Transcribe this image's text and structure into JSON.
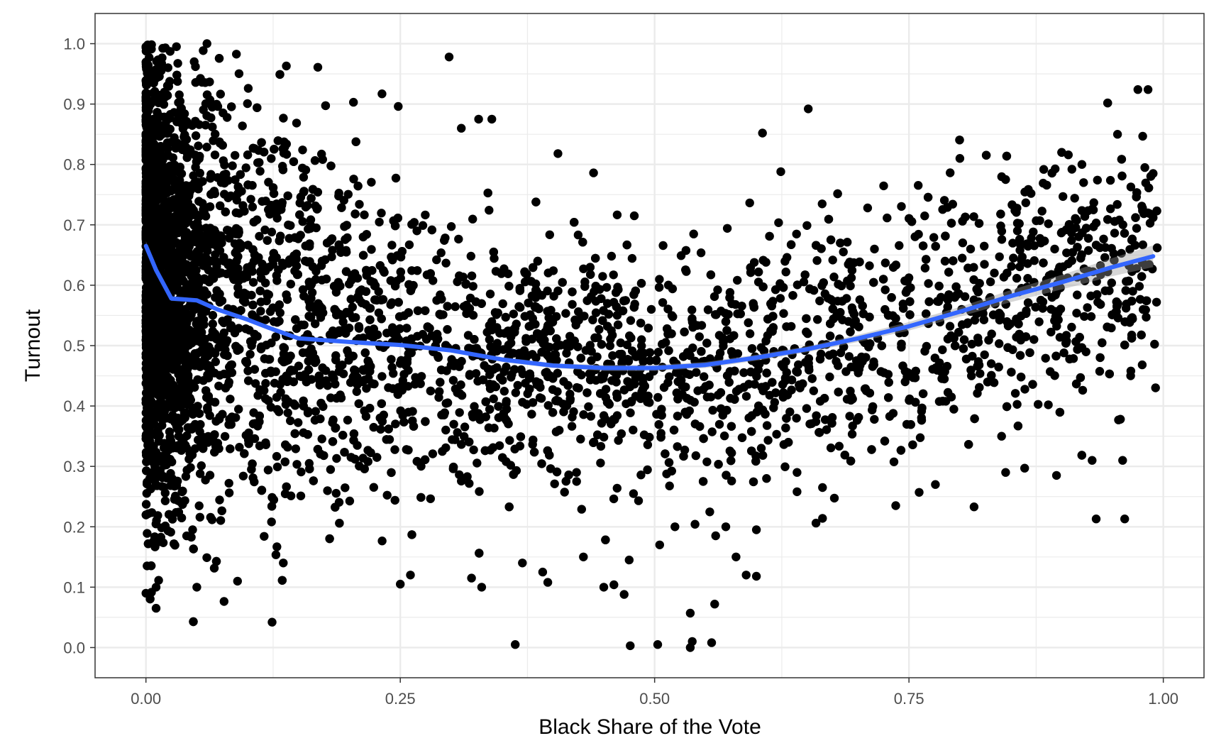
{
  "chart_data": {
    "type": "scatter",
    "title": "",
    "xlabel": "Black Share of the Vote",
    "ylabel": "Turnout",
    "xlim": [
      -0.05,
      1.04
    ],
    "ylim": [
      -0.05,
      1.05
    ],
    "x_ticks": [
      0.0,
      0.25,
      0.5,
      0.75,
      1.0
    ],
    "x_tick_labels": [
      "0.00",
      "0.25",
      "0.50",
      "0.75",
      "1.00"
    ],
    "y_ticks": [
      0.0,
      0.1,
      0.2,
      0.3,
      0.4,
      0.5,
      0.6,
      0.7,
      0.8,
      0.9,
      1.0
    ],
    "y_tick_labels": [
      "0.0",
      "0.1",
      "0.2",
      "0.3",
      "0.4",
      "0.5",
      "0.6",
      "0.7",
      "0.8",
      "0.9",
      "1.0"
    ],
    "grid": true,
    "legend": "none",
    "colors": {
      "points": "#000000",
      "smooth": "#3366FF",
      "ribbon": "#999999",
      "grid": "#ebebeb",
      "panel_border": "#333333"
    },
    "outliers": [
      {
        "x": 0.0,
        "y": 0.09
      },
      {
        "x": 0.01,
        "y": 0.065
      },
      {
        "x": 0.01,
        "y": 0.1
      },
      {
        "x": 0.05,
        "y": 0.1
      },
      {
        "x": 0.09,
        "y": 0.11
      },
      {
        "x": 0.124,
        "y": 0.042
      },
      {
        "x": 0.135,
        "y": 0.14
      },
      {
        "x": 0.298,
        "y": 0.978
      },
      {
        "x": 0.363,
        "y": 0.005
      },
      {
        "x": 0.476,
        "y": 0.003
      },
      {
        "x": 0.503,
        "y": 0.005
      },
      {
        "x": 0.535,
        "y": 0.0
      },
      {
        "x": 0.537,
        "y": 0.01
      },
      {
        "x": 0.556,
        "y": 0.008
      },
      {
        "x": 0.535,
        "y": 0.057
      },
      {
        "x": 0.559,
        "y": 0.072
      },
      {
        "x": 0.47,
        "y": 0.088
      },
      {
        "x": 0.46,
        "y": 0.104
      },
      {
        "x": 0.606,
        "y": 0.852
      },
      {
        "x": 0.651,
        "y": 0.892
      },
      {
        "x": 0.59,
        "y": 0.12
      },
      {
        "x": 0.6,
        "y": 0.118
      },
      {
        "x": 0.934,
        "y": 0.213
      },
      {
        "x": 0.962,
        "y": 0.213
      },
      {
        "x": 0.814,
        "y": 0.233
      },
      {
        "x": 0.737,
        "y": 0.235
      },
      {
        "x": 0.665,
        "y": 0.214
      },
      {
        "x": 0.975,
        "y": 0.924
      },
      {
        "x": 0.985,
        "y": 0.924
      },
      {
        "x": 0.96,
        "y": 0.31
      },
      {
        "x": 0.956,
        "y": 0.377
      },
      {
        "x": 0.97,
        "y": 0.59
      },
      {
        "x": 0.99,
        "y": 0.712
      },
      {
        "x": 0.99,
        "y": 0.785
      },
      {
        "x": 0.31,
        "y": 0.86
      },
      {
        "x": 0.327,
        "y": 0.875
      },
      {
        "x": 0.34,
        "y": 0.875
      },
      {
        "x": 0.204,
        "y": 0.903
      },
      {
        "x": 0.232,
        "y": 0.917
      },
      {
        "x": 0.248,
        "y": 0.896
      },
      {
        "x": 0.138,
        "y": 0.963
      },
      {
        "x": 0.06,
        "y": 1.0
      },
      {
        "x": 0.03,
        "y": 0.995
      },
      {
        "x": 0.405,
        "y": 0.818
      },
      {
        "x": 0.44,
        "y": 0.786
      },
      {
        "x": 0.48,
        "y": 0.715
      },
      {
        "x": 0.624,
        "y": 0.788
      },
      {
        "x": 0.8,
        "y": 0.81
      },
      {
        "x": 0.845,
        "y": 0.775
      },
      {
        "x": 0.87,
        "y": 0.752
      },
      {
        "x": 0.92,
        "y": 0.8
      },
      {
        "x": 0.955,
        "y": 0.85
      },
      {
        "x": 0.665,
        "y": 0.265
      },
      {
        "x": 0.64,
        "y": 0.258
      },
      {
        "x": 0.64,
        "y": 0.29
      },
      {
        "x": 0.61,
        "y": 0.28
      },
      {
        "x": 0.776,
        "y": 0.27
      },
      {
        "x": 0.76,
        "y": 0.257
      },
      {
        "x": 0.845,
        "y": 0.29
      },
      {
        "x": 0.895,
        "y": 0.285
      },
      {
        "x": 0.93,
        "y": 0.31
      },
      {
        "x": 0.25,
        "y": 0.105
      },
      {
        "x": 0.26,
        "y": 0.12
      },
      {
        "x": 0.32,
        "y": 0.115
      },
      {
        "x": 0.33,
        "y": 0.1
      },
      {
        "x": 0.37,
        "y": 0.14
      },
      {
        "x": 0.39,
        "y": 0.125
      },
      {
        "x": 0.395,
        "y": 0.108
      },
      {
        "x": 0.43,
        "y": 0.15
      },
      {
        "x": 0.45,
        "y": 0.1
      },
      {
        "x": 0.475,
        "y": 0.145
      },
      {
        "x": 0.56,
        "y": 0.185
      },
      {
        "x": 0.57,
        "y": 0.2
      },
      {
        "x": 0.6,
        "y": 0.195
      },
      {
        "x": 0.58,
        "y": 0.15
      },
      {
        "x": 0.505,
        "y": 0.17
      },
      {
        "x": 0.52,
        "y": 0.2
      }
    ],
    "smooth": {
      "method": "loess",
      "x": [
        0.0,
        0.01,
        0.025,
        0.05,
        0.07,
        0.1,
        0.12,
        0.15,
        0.2,
        0.25,
        0.3,
        0.35,
        0.4,
        0.45,
        0.5,
        0.55,
        0.6,
        0.65,
        0.7,
        0.75,
        0.8,
        0.85,
        0.9,
        0.95,
        0.99
      ],
      "y": [
        0.665,
        0.625,
        0.578,
        0.575,
        0.56,
        0.543,
        0.53,
        0.512,
        0.506,
        0.501,
        0.492,
        0.477,
        0.467,
        0.463,
        0.463,
        0.468,
        0.48,
        0.494,
        0.512,
        0.532,
        0.556,
        0.582,
        0.605,
        0.63,
        0.648
      ],
      "ci_halfwidth": [
        0.008,
        0.005,
        0.004,
        0.003,
        0.003,
        0.003,
        0.003,
        0.003,
        0.003,
        0.003,
        0.003,
        0.004,
        0.004,
        0.005,
        0.005,
        0.005,
        0.005,
        0.005,
        0.006,
        0.007,
        0.008,
        0.01,
        0.012,
        0.015,
        0.018
      ]
    }
  }
}
